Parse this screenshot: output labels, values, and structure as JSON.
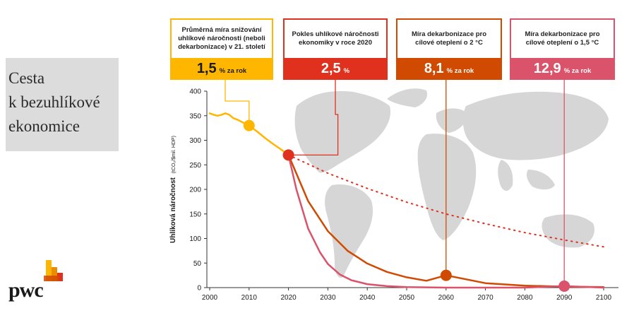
{
  "title": {
    "line1": "Cesta",
    "line2": "k bezuhlíkové",
    "line3": "ekonomice"
  },
  "logo": {
    "text": "pwc"
  },
  "info_boxes": [
    {
      "text": "Průměrná míra snižování uhlíkové náročnosti (neboli dekarbonizace) v 21. století",
      "value": "1,5",
      "unit": "% za rok",
      "color": "#ffb600"
    },
    {
      "text": "Pokles uhlíkové náročnosti ekonomiky v roce 2020",
      "value": "2,5",
      "unit": "%",
      "color": "#e0301e"
    },
    {
      "text": "Míra dekarbonizace pro cílové oteplení o 2 °C",
      "value": "8,1",
      "unit": "% za rok",
      "color": "#d04a02"
    },
    {
      "text": "Míra dekarbonizace pro cílové oteplení o 1,5 °C",
      "value": "12,9",
      "unit": "% za rok",
      "color": "#db536a"
    }
  ],
  "chart_data": {
    "type": "line",
    "ylabel": "Uhlíková náročnost",
    "ylabel_unit": "(tCO₂/$mil. HDP)",
    "xlim": [
      2000,
      2100
    ],
    "ylim": [
      0,
      400
    ],
    "x_ticks": [
      2000,
      2010,
      2020,
      2030,
      2040,
      2050,
      2060,
      2070,
      2080,
      2090,
      2100
    ],
    "y_ticks": [
      0,
      50,
      100,
      150,
      200,
      250,
      300,
      350,
      400
    ],
    "series": [
      {
        "color": "#ffb600",
        "style": "solid",
        "x": [
          2000,
          2001,
          2002,
          2003,
          2004,
          2005,
          2006,
          2007,
          2008,
          2010,
          2012,
          2014,
          2016,
          2018,
          2020
        ],
        "y": [
          355,
          352,
          350,
          352,
          355,
          352,
          345,
          342,
          338,
          330,
          318,
          305,
          293,
          282,
          270
        ]
      },
      {
        "color": "#e0301e",
        "style": "dotted",
        "x": [
          2020,
          2030,
          2040,
          2050,
          2060,
          2070,
          2080,
          2090,
          2100
        ],
        "y": [
          270,
          233,
          202,
          174,
          150,
          130,
          112,
          97,
          83
        ]
      },
      {
        "color": "#d04a02",
        "style": "solid",
        "x": [
          2020,
          2025,
          2030,
          2035,
          2040,
          2045,
          2050,
          2055,
          2060,
          2070,
          2080,
          2090,
          2100
        ],
        "y": [
          270,
          176,
          115,
          75,
          49,
          32,
          21,
          14,
          25,
          9,
          4,
          2,
          1
        ]
      },
      {
        "color": "#db536a",
        "style": "solid",
        "x": [
          2020,
          2022,
          2025,
          2028,
          2030,
          2033,
          2036,
          2040,
          2045,
          2050,
          2060,
          2070,
          2080,
          2090,
          2100
        ],
        "y": [
          270,
          200,
          120,
          72,
          48,
          27,
          15,
          7,
          3,
          1,
          0,
          0,
          0,
          3,
          0
        ]
      }
    ],
    "markers": [
      {
        "x": 2010,
        "y": 330,
        "color": "#ffb600"
      },
      {
        "x": 2020,
        "y": 270,
        "color": "#e0301e"
      },
      {
        "x": 2060,
        "y": 25,
        "color": "#d04a02"
      },
      {
        "x": 2090,
        "y": 3,
        "color": "#db536a"
      }
    ],
    "map_color": "#d6d6d6"
  }
}
